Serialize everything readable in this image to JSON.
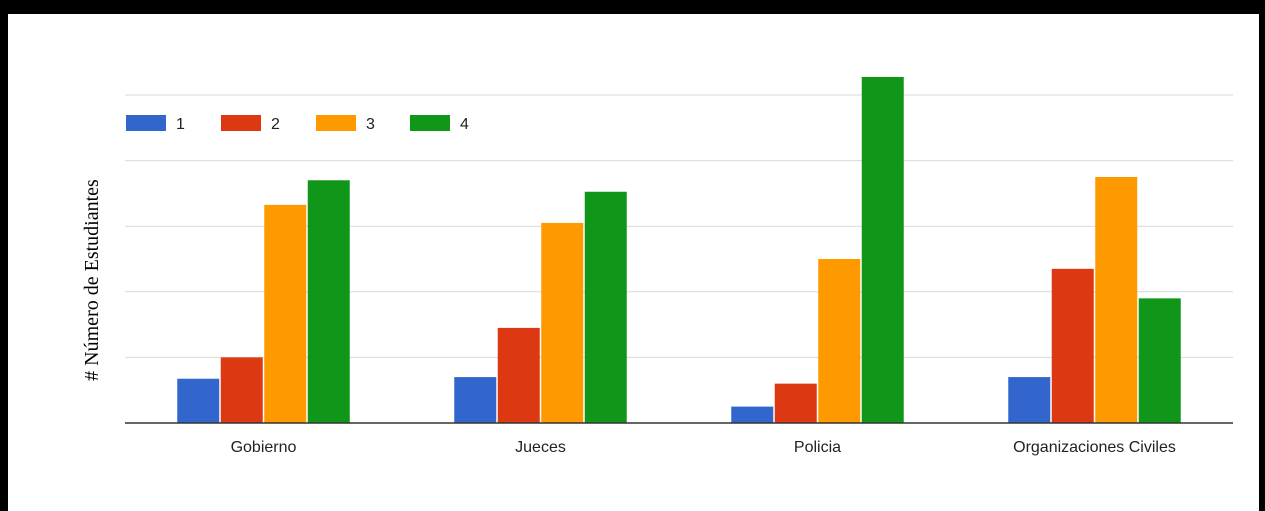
{
  "chart_data": {
    "type": "bar",
    "title": "",
    "xlabel": "",
    "ylabel": "# Número de Estudiantes",
    "categories": [
      "Gobierno",
      "Jueces",
      "Policia",
      "Organizaciones Civiles"
    ],
    "series": [
      {
        "name": "1",
        "color": "#3366cc",
        "values": [
          2.7,
          2.8,
          1.0,
          2.8
        ]
      },
      {
        "name": "2",
        "color": "#dc3912",
        "values": [
          4.0,
          5.8,
          2.4,
          9.4
        ]
      },
      {
        "name": "3",
        "color": "#ff9900",
        "values": [
          13.3,
          12.2,
          10.0,
          15.0
        ]
      },
      {
        "name": "4",
        "color": "#109618",
        "values": [
          14.8,
          14.1,
          21.1,
          7.6
        ]
      }
    ],
    "ylim": [
      0,
      20
    ],
    "yticks": [
      0,
      4,
      8,
      12,
      16,
      20
    ],
    "grid": true,
    "legend_position": "top-left"
  }
}
